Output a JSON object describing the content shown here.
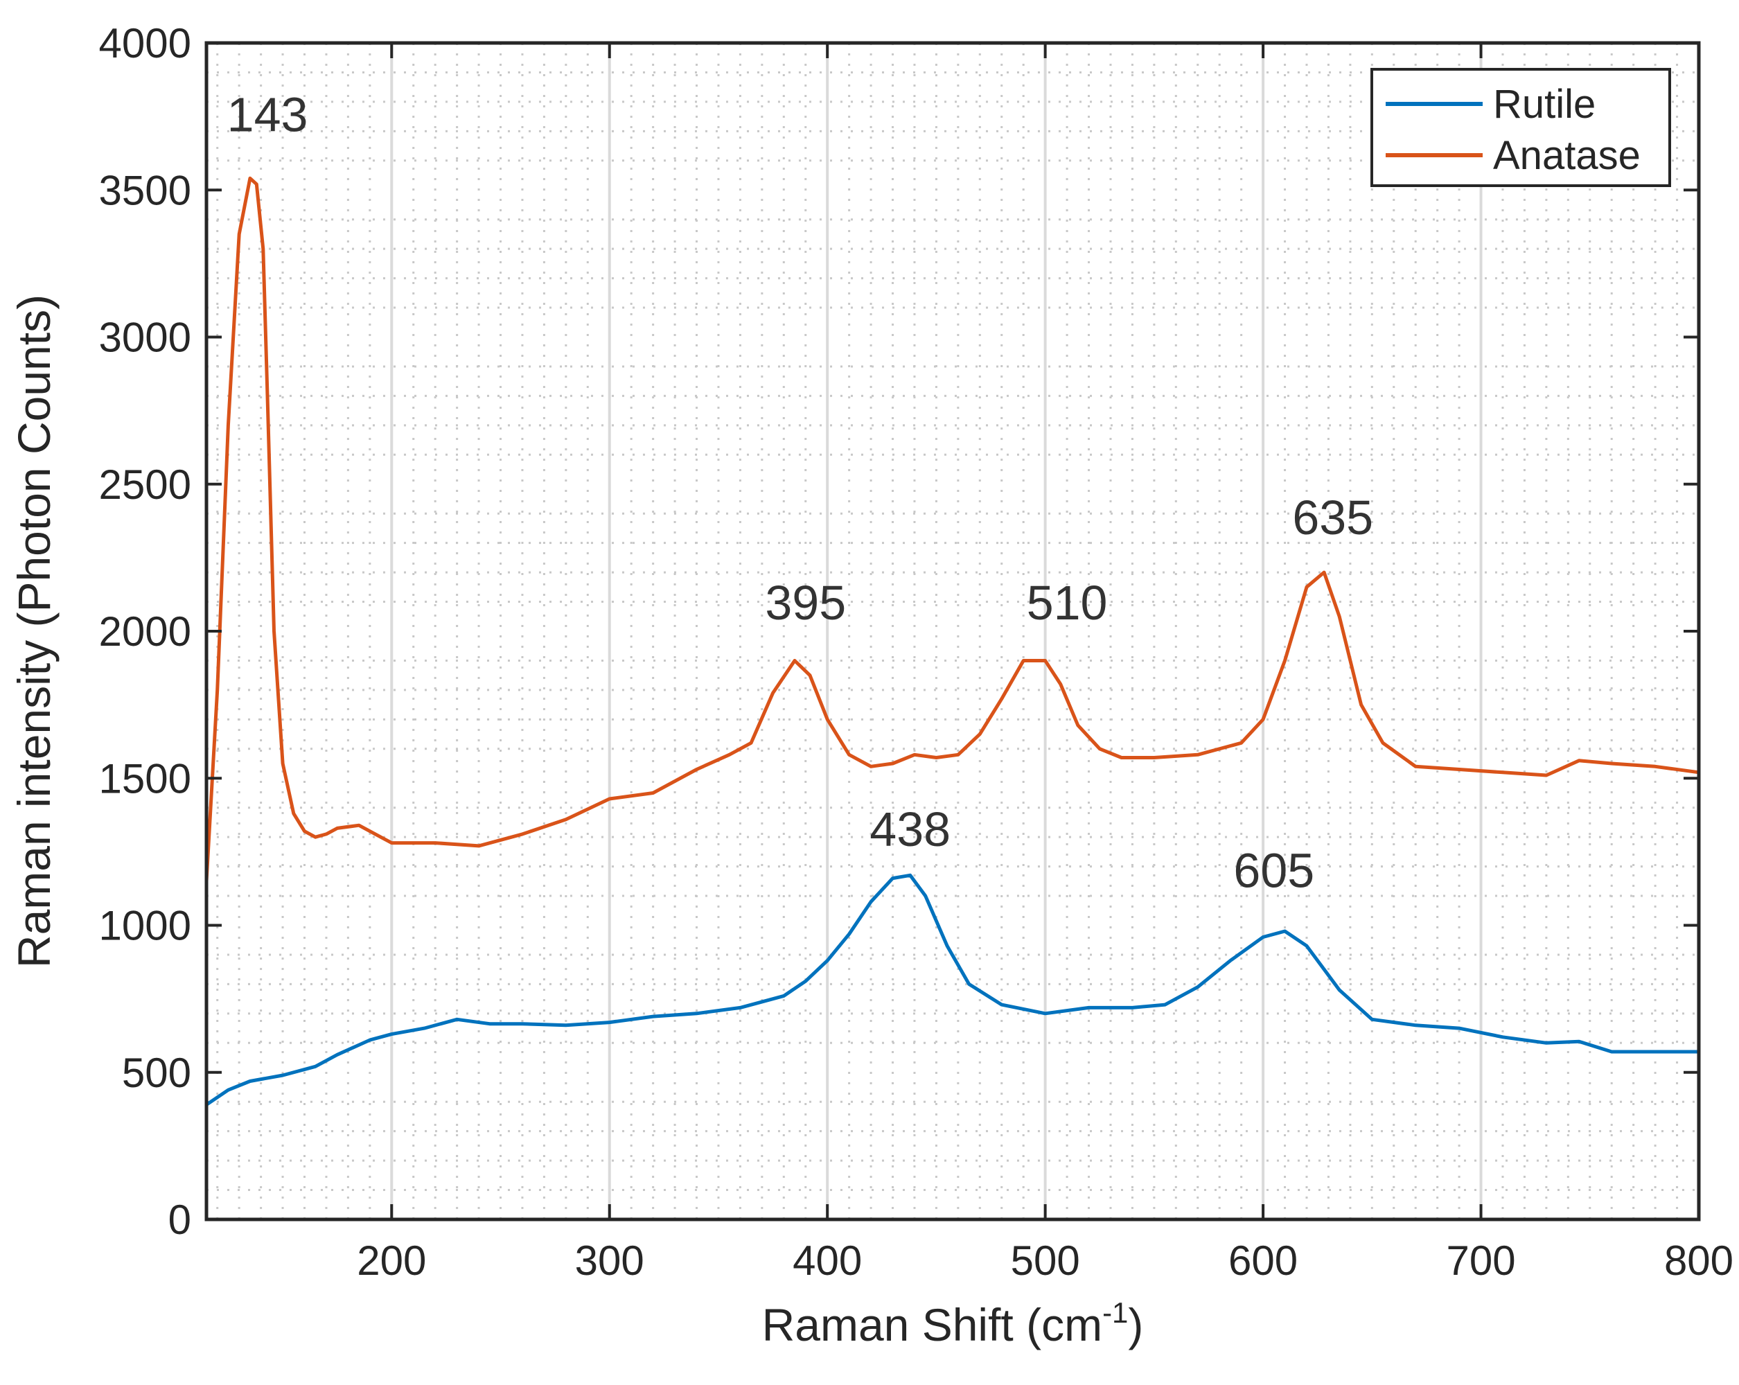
{
  "chart_data": {
    "type": "line",
    "title": "",
    "xlabel": "Raman Shift (cm",
    "xlabel_superscript": "-1",
    "xlabel_suffix": ")",
    "ylabel": "Raman intensity (Photon Counts)",
    "xlim": [
      115,
      800
    ],
    "ylim": [
      0,
      4000
    ],
    "xticks": [
      200,
      300,
      400,
      500,
      600,
      700,
      800
    ],
    "yticks": [
      0,
      500,
      1000,
      1500,
      2000,
      2500,
      3000,
      3500,
      4000
    ],
    "major_grid": "x",
    "minor_grid": "dotted",
    "legend_position": "top-right",
    "series": [
      {
        "name": "Rutile",
        "color": "#0072BD",
        "x": [
          115,
          125,
          135,
          150,
          165,
          175,
          190,
          200,
          215,
          230,
          245,
          260,
          280,
          300,
          320,
          340,
          360,
          370,
          380,
          390,
          400,
          410,
          420,
          430,
          438,
          445,
          455,
          465,
          480,
          500,
          520,
          540,
          555,
          570,
          585,
          600,
          610,
          620,
          635,
          650,
          670,
          690,
          710,
          730,
          745,
          760,
          780,
          800
        ],
        "y": [
          390,
          440,
          470,
          490,
          520,
          560,
          610,
          630,
          650,
          680,
          665,
          665,
          660,
          670,
          690,
          700,
          720,
          740,
          760,
          810,
          880,
          970,
          1080,
          1160,
          1170,
          1100,
          930,
          800,
          730,
          700,
          720,
          720,
          730,
          790,
          880,
          960,
          980,
          930,
          780,
          680,
          660,
          650,
          620,
          600,
          605,
          570,
          570,
          570
        ]
      },
      {
        "name": "Anatase",
        "color": "#D95319",
        "x": [
          115,
          120,
          125,
          130,
          135,
          138,
          141,
          143,
          146,
          150,
          155,
          160,
          165,
          170,
          175,
          185,
          195,
          200,
          220,
          240,
          260,
          280,
          300,
          320,
          340,
          355,
          365,
          375,
          385,
          392,
          400,
          410,
          420,
          430,
          440,
          450,
          460,
          470,
          480,
          490,
          500,
          507,
          515,
          525,
          535,
          550,
          570,
          590,
          600,
          610,
          620,
          628,
          635,
          645,
          655,
          670,
          690,
          710,
          730,
          745,
          760,
          780,
          800
        ],
        "y": [
          1150,
          1800,
          2700,
          3350,
          3540,
          3520,
          3300,
          2800,
          2000,
          1550,
          1380,
          1320,
          1300,
          1310,
          1330,
          1340,
          1300,
          1280,
          1280,
          1270,
          1310,
          1360,
          1430,
          1450,
          1530,
          1580,
          1620,
          1790,
          1900,
          1850,
          1700,
          1580,
          1540,
          1550,
          1580,
          1570,
          1580,
          1650,
          1770,
          1900,
          1900,
          1820,
          1680,
          1600,
          1570,
          1570,
          1580,
          1620,
          1700,
          1900,
          2150,
          2200,
          2050,
          1750,
          1620,
          1540,
          1530,
          1520,
          1510,
          1560,
          1550,
          1540,
          1520
        ]
      }
    ],
    "annotations": [
      {
        "text": "143",
        "x": 143,
        "y": 3700
      },
      {
        "text": "395",
        "x": 390,
        "y": 2040
      },
      {
        "text": "510",
        "x": 510,
        "y": 2040
      },
      {
        "text": "635",
        "x": 632,
        "y": 2330
      },
      {
        "text": "438",
        "x": 438,
        "y": 1270
      },
      {
        "text": "605",
        "x": 605,
        "y": 1130
      }
    ]
  }
}
